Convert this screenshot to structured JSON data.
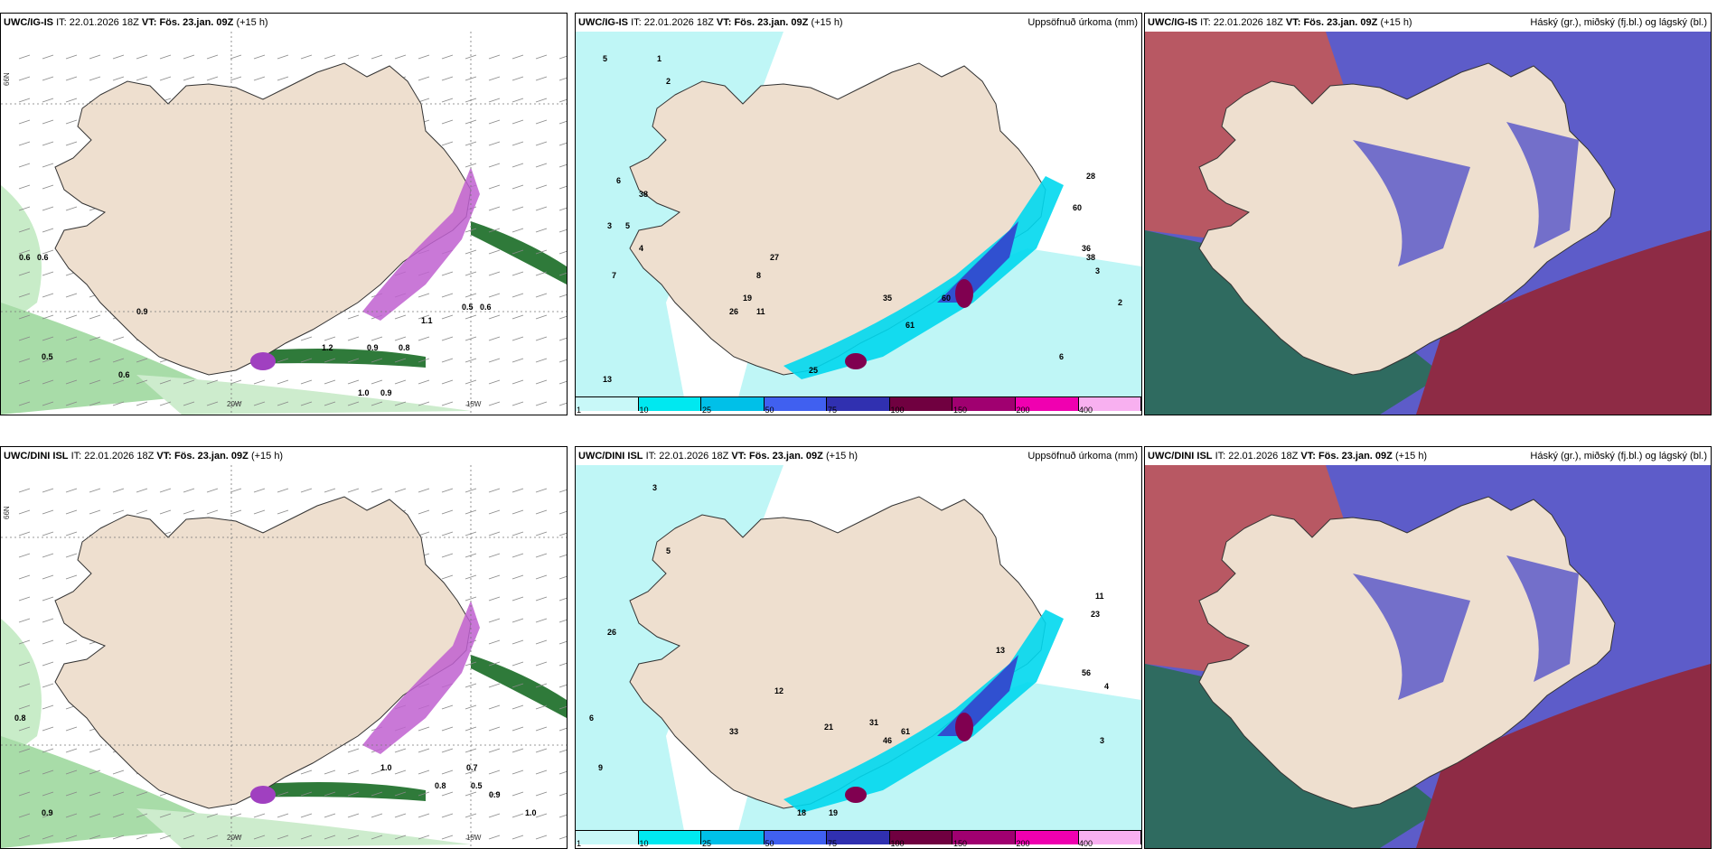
{
  "panels": [
    {
      "model": "UWC/IG-IS",
      "it": "22.01.2026 18Z",
      "vt": "Fös. 23.jan. 09Z",
      "lead": "(+15 h)",
      "right": ""
    },
    {
      "model": "UWC/IG-IS",
      "it": "22.01.2026 18Z",
      "vt": "Fös. 23.jan. 09Z",
      "lead": "(+15 h)",
      "right": "Uppsöfnuð úrkoma (mm)"
    },
    {
      "model": "UWC/IG-IS",
      "it": "22.01.2026 18Z",
      "vt": "Fös. 23.jan. 09Z",
      "lead": "(+15 h)",
      "right": "Háský (gr.), miðský (fj.bl.) og lágský (bl.)"
    },
    {
      "model": "UWC/DINI ISL",
      "it": "22.01.2026 18Z",
      "vt": "Fös. 23.jan. 09Z",
      "lead": "(+15 h)",
      "right": ""
    },
    {
      "model": "UWC/DINI ISL",
      "it": "22.01.2026 18Z",
      "vt": "Fös. 23.jan. 09Z",
      "lead": "(+15 h)",
      "right": "Uppsöfnuð úrkoma (mm)"
    },
    {
      "model": "UWC/DINI ISL",
      "it": "22.01.2026 18Z",
      "vt": "Fös. 23.jan. 09Z",
      "lead": "(+15 h)",
      "right": "Háský (gr.), miðský (fj.bl.) og lágský (bl.)"
    }
  ],
  "labels": {
    "it": "IT:",
    "vt": "VT:"
  },
  "axes": {
    "lat": "66N",
    "lon1": "20W",
    "lon2": "15W"
  },
  "colorbar": {
    "ticks": [
      "1",
      "10",
      "25",
      "50",
      "75",
      "100",
      "150",
      "200",
      "400"
    ],
    "colors": [
      "#c8f8f8",
      "#00e8f0",
      "#00c0e8",
      "#4060f0",
      "#3030b0",
      "#700040",
      "#a00070",
      "#f000b0",
      "#f8b0f0"
    ]
  },
  "snow_labels_top": [
    "0.6",
    "0.6",
    "0.9",
    "0.5",
    "0.6",
    "1.2",
    "0.9",
    "0.8",
    "0.5",
    "0.6",
    "1.1",
    "1.0",
    "0.9"
  ],
  "precip_labels_top": [
    "5",
    "1",
    "2",
    "6",
    "38",
    "4",
    "3",
    "5",
    "7",
    "13",
    "8",
    "27",
    "19",
    "26",
    "11",
    "35",
    "61",
    "60",
    "28",
    "60",
    "36",
    "38",
    "3",
    "2",
    "6",
    "25"
  ],
  "snow_labels_bot": [
    "0.8",
    "0.9",
    "1.0",
    "0.7",
    "0.8",
    "0.5",
    "0.9",
    "1.0"
  ],
  "precip_labels_bot": [
    "3",
    "5",
    "26",
    "6",
    "9",
    "33",
    "12",
    "21",
    "31",
    "46",
    "61",
    "13",
    "56",
    "11",
    "23",
    "4",
    "3",
    "18",
    "19"
  ],
  "colors": {
    "land": "#eedfcf",
    "sea_cyan": "#bff6f6",
    "snow_green": "#60b070",
    "cloud_high": "#5d5cc9",
    "cloud_mid": "#8e2b45",
    "cloud_low": "#2f6b60"
  }
}
